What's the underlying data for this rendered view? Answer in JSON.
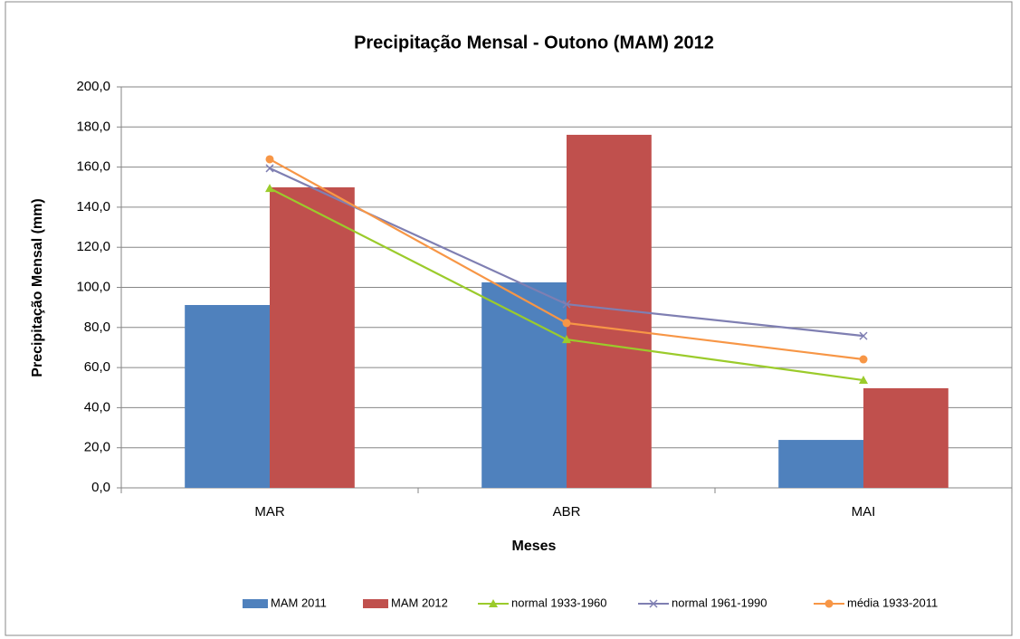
{
  "chart_data": {
    "type": "combo",
    "title": "Precipitação Mensal - Outono (MAM) 2012",
    "x_label": "Meses",
    "y_label": "Precipitação Mensal (mm)",
    "categories": [
      "MAR",
      "ABR",
      "MAI"
    ],
    "series": [
      {
        "name": "MAM 2011",
        "kind": "bar",
        "color": "#4f81bd",
        "values": [
          91.2,
          102.5,
          23.9
        ]
      },
      {
        "name": "MAM 2012",
        "kind": "bar",
        "color": "#c0504d",
        "values": [
          149.9,
          176.1,
          49.7
        ]
      },
      {
        "name": "normal 1933-1960",
        "kind": "line",
        "marker": "triangle",
        "color": "#9bcb2b",
        "values": [
          149.4,
          74.0,
          53.7
        ]
      },
      {
        "name": "normal 1961-1990",
        "kind": "line",
        "marker": "x",
        "color": "#7f7fb2",
        "values": [
          159.4,
          91.6,
          75.8
        ]
      },
      {
        "name": "média 1933-2011",
        "kind": "line",
        "marker": "circle",
        "color": "#f79646",
        "values": [
          163.9,
          82.2,
          64.1
        ]
      }
    ],
    "ylim": [
      0,
      200
    ],
    "yticks": [
      {
        "value": 0,
        "label": "0,0"
      },
      {
        "value": 20,
        "label": "20,0"
      },
      {
        "value": 40,
        "label": "40,0"
      },
      {
        "value": 60,
        "label": "60,0"
      },
      {
        "value": 80,
        "label": "80,0"
      },
      {
        "value": 100,
        "label": "100,0"
      },
      {
        "value": 120,
        "label": "120,0"
      },
      {
        "value": 140,
        "label": "140,0"
      },
      {
        "value": 160,
        "label": "160,0"
      },
      {
        "value": 180,
        "label": "180,0"
      },
      {
        "value": 200,
        "label": "200,0"
      }
    ],
    "grid": true,
    "legend": "bottom"
  }
}
